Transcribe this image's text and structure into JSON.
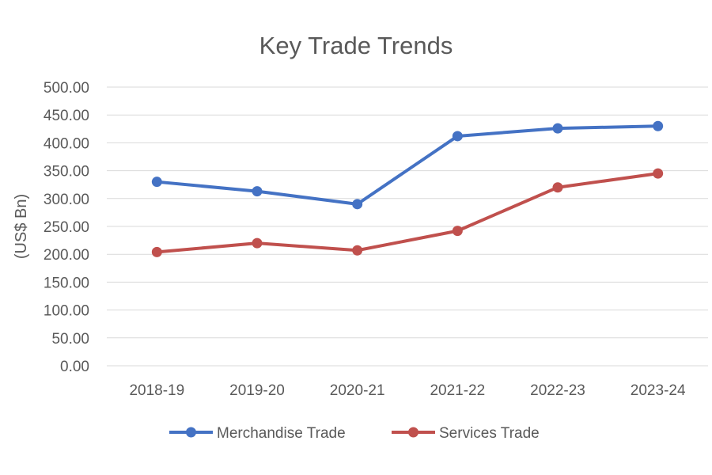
{
  "chart_data": {
    "type": "line",
    "title": "Key Trade Trends",
    "ylabel": "(US$ Bn)",
    "xlabel": "",
    "categories": [
      "2018-19",
      "2019-20",
      "2020-21",
      "2021-22",
      "2022-23",
      "2023-24"
    ],
    "ylim": [
      0,
      500
    ],
    "yticks": [
      "0.00",
      "50.00",
      "100.00",
      "150.00",
      "200.00",
      "250.00",
      "300.00",
      "350.00",
      "400.00",
      "450.00",
      "500.00"
    ],
    "grid": true,
    "legend_position": "bottom",
    "series": [
      {
        "name": "Merchandise Trade",
        "color": "#4472C4",
        "values": [
          330,
          313,
          290,
          412,
          426,
          430
        ]
      },
      {
        "name": "Services Trade",
        "color": "#C0504D",
        "values": [
          204,
          220,
          207,
          242,
          320,
          345
        ]
      }
    ]
  }
}
